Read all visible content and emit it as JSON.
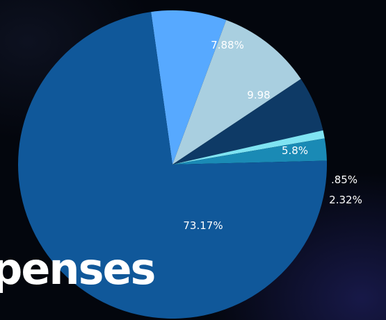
{
  "chart_data": {
    "type": "pie",
    "title": "penses",
    "slices": [
      {
        "label": "7.88%",
        "value": 7.88,
        "color": "#57a9ff",
        "label_color": "#ffffff"
      },
      {
        "label": "9.98",
        "value": 9.98,
        "color": "#a9cfe0",
        "label_color": "#e8f2f8"
      },
      {
        "label": "5.8%",
        "value": 5.8,
        "color": "#0e3a66",
        "label_color": "#ffffff"
      },
      {
        "label": ".85%",
        "value": 0.85,
        "color": "#7fe3f2",
        "label_color": "#ffffff"
      },
      {
        "label": "2.32%",
        "value": 2.32,
        "color": "#1a8ab5",
        "label_color": "#ffffff"
      },
      {
        "label": "73.17%",
        "value": 73.17,
        "color": "#10589a",
        "label_color": "#ffffff"
      }
    ]
  }
}
